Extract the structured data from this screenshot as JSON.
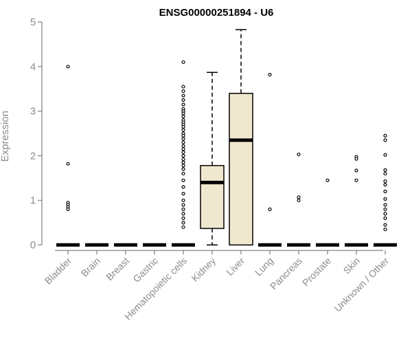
{
  "chart_data": {
    "type": "box",
    "title": "ENSG00000251894 - U6",
    "xlabel": "",
    "ylabel": "Expression",
    "ylim": [
      0,
      5
    ],
    "yticks": [
      "0",
      "1",
      "2",
      "3",
      "4",
      "5"
    ],
    "categories": [
      "Bladder",
      "Brain",
      "Breast",
      "Gastric",
      "Hematopoietic cells",
      "Kidney",
      "Liver",
      "Lung",
      "Pancreas",
      "Prostate",
      "Skin",
      "Unknown / Other"
    ],
    "boxes": [
      {
        "category": "Bladder",
        "min": 0,
        "q1": 0,
        "median": 0,
        "q3": 0,
        "max": 0,
        "outliers": [
          4.0,
          1.82,
          0.95,
          0.9,
          0.85,
          0.8
        ]
      },
      {
        "category": "Brain",
        "min": 0,
        "q1": 0,
        "median": 0,
        "q3": 0,
        "max": 0,
        "outliers": []
      },
      {
        "category": "Breast",
        "min": 0,
        "q1": 0,
        "median": 0,
        "q3": 0,
        "max": 0,
        "outliers": []
      },
      {
        "category": "Gastric",
        "min": 0,
        "q1": 0,
        "median": 0,
        "q3": 0,
        "max": 0,
        "outliers": []
      },
      {
        "category": "Hematopoietic cells",
        "min": 0,
        "q1": 0,
        "median": 0,
        "q3": 0,
        "max": 0,
        "outliers": [
          4.1,
          3.55,
          3.45,
          3.35,
          3.25,
          3.15,
          3.05,
          3.0,
          2.95,
          2.88,
          2.8,
          2.75,
          2.7,
          2.65,
          2.58,
          2.5,
          2.45,
          2.38,
          2.3,
          2.22,
          2.15,
          2.08,
          2.0,
          1.92,
          1.85,
          1.78,
          1.7,
          1.6,
          1.45,
          1.3,
          1.15,
          1.0,
          0.9,
          0.8,
          0.7,
          0.6,
          0.5,
          0.4
        ]
      },
      {
        "category": "Kidney",
        "min": 0,
        "q1": 0.37,
        "median": 1.4,
        "q3": 1.78,
        "max": 3.87,
        "outliers": []
      },
      {
        "category": "Liver",
        "min": 0,
        "q1": 0,
        "median": 2.35,
        "q3": 3.4,
        "max": 4.83,
        "outliers": []
      },
      {
        "category": "Lung",
        "min": 0,
        "q1": 0,
        "median": 0,
        "q3": 0,
        "max": 0,
        "outliers": [
          3.82,
          0.8
        ]
      },
      {
        "category": "Pancreas",
        "min": 0,
        "q1": 0,
        "median": 0,
        "q3": 0,
        "max": 0,
        "outliers": [
          2.03,
          1.07,
          1.0
        ]
      },
      {
        "category": "Prostate",
        "min": 0,
        "q1": 0,
        "median": 0,
        "q3": 0,
        "max": 0,
        "outliers": [
          1.45
        ]
      },
      {
        "category": "Skin",
        "min": 0,
        "q1": 0,
        "median": 0,
        "q3": 0,
        "max": 0,
        "outliers": [
          1.98,
          1.93,
          1.67,
          1.45
        ]
      },
      {
        "category": "Unknown / Other",
        "min": 0,
        "q1": 0,
        "median": 0,
        "q3": 0,
        "max": 0,
        "outliers": [
          2.45,
          2.35,
          2.02,
          1.68,
          1.6,
          1.43,
          1.35,
          1.2,
          1.03,
          0.9,
          0.8,
          0.7,
          0.6,
          0.45,
          0.35
        ]
      }
    ],
    "grid": false,
    "legend": "none"
  }
}
